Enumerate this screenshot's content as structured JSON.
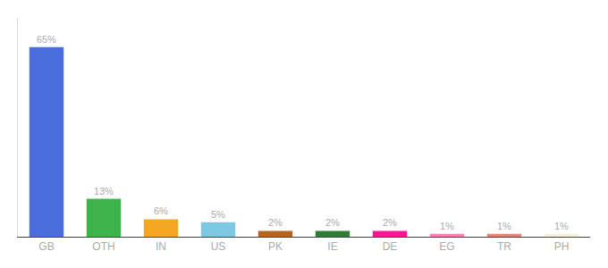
{
  "chart_data": {
    "type": "bar",
    "categories": [
      "GB",
      "OTH",
      "IN",
      "US",
      "PK",
      "IE",
      "DE",
      "EG",
      "TR",
      "PH"
    ],
    "values": [
      65,
      13,
      6,
      5,
      2,
      2,
      2,
      1,
      1,
      1
    ],
    "value_labels": [
      "65%",
      "13%",
      "6%",
      "5%",
      "2%",
      "2%",
      "2%",
      "1%",
      "1%",
      "1%"
    ],
    "colors": [
      "#4a6fdc",
      "#3db34a",
      "#f5a623",
      "#7ec8e3",
      "#b5651d",
      "#2e7d32",
      "#ff1493",
      "#ff80b0",
      "#e8846e",
      "#f5f0d8"
    ],
    "ylim": [
      0,
      75
    ],
    "data_labels": true,
    "tick_labels": "x",
    "grid": false
  }
}
